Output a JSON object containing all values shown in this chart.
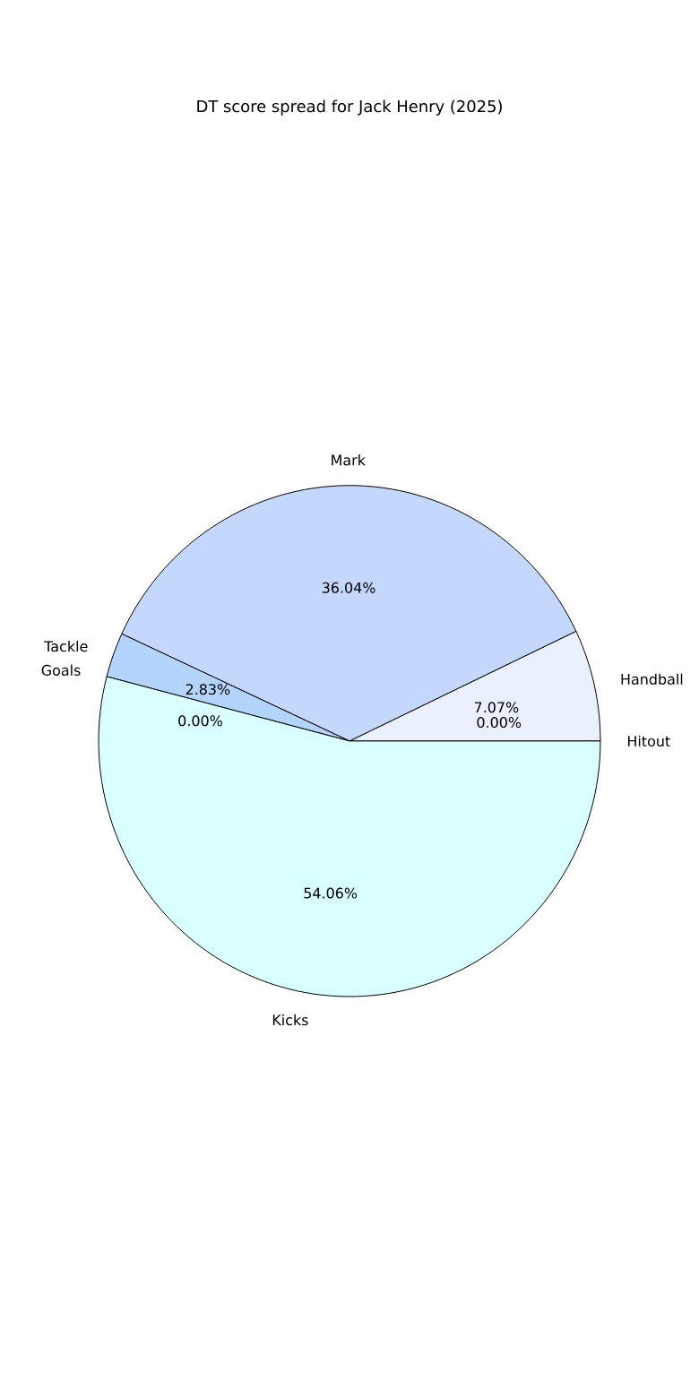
{
  "chart_data": {
    "type": "pie",
    "title": "DT score spread for Jack Henry (2025)",
    "categories": [
      "Handball",
      "Mark",
      "Tackle",
      "Goals",
      "Kicks",
      "Hitout"
    ],
    "values": [
      7.07,
      36.04,
      2.83,
      0.0,
      54.06,
      0.0
    ],
    "value_labels": [
      "7.07%",
      "36.04%",
      "2.83%",
      "0.00%",
      "54.06%",
      "0.00%"
    ],
    "colors": [
      "#eaf0fd",
      "#c4d7fc",
      "#b3d5fc",
      "#a9cdf9",
      "#daffff",
      "#e0e6f0"
    ]
  }
}
